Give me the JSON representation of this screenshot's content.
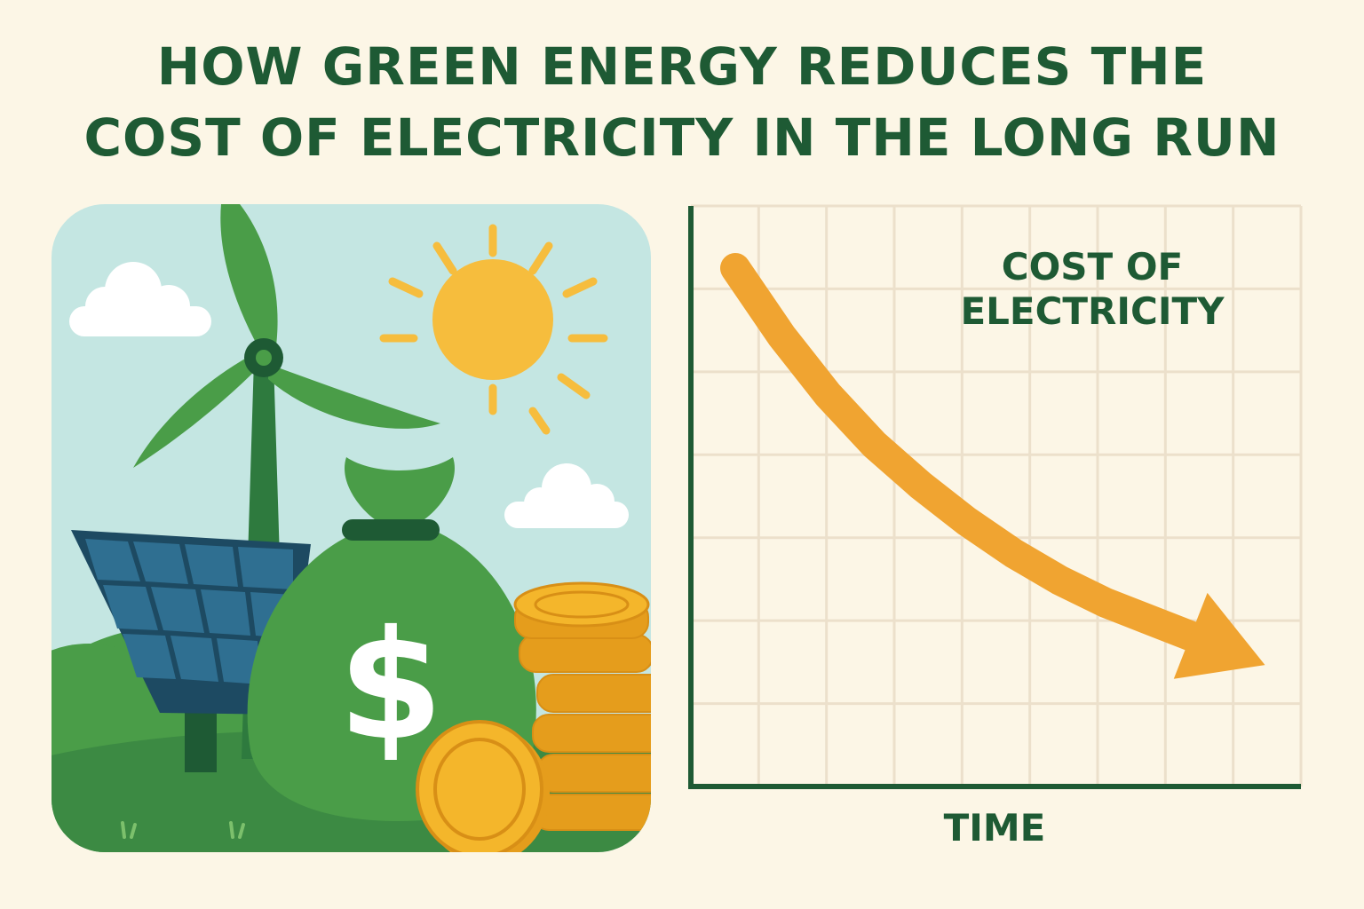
{
  "title": {
    "line1": "HOW GREEN ENERGY REDUCES THE",
    "line2": "COST OF ELECTRICITY IN THE LONG RUN"
  },
  "illustration": {
    "money_symbol": "$",
    "icons": [
      "wind-turbine-icon",
      "sun-icon",
      "cloud-icon",
      "solar-panel-icon",
      "money-bag-icon",
      "coin-stack-icon"
    ]
  },
  "chart_data": {
    "type": "line",
    "title": "",
    "ylabel_lines": [
      "COST OF",
      "ELECTRICITY"
    ],
    "xlabel": "TIME",
    "grid": true,
    "trend": "decreasing",
    "series": [
      {
        "x": [
          0,
          0.1,
          0.2,
          0.3,
          0.4,
          0.5,
          0.6,
          0.7,
          0.8,
          0.9,
          1.0
        ],
        "y": [
          1.0,
          0.85,
          0.72,
          0.61,
          0.52,
          0.44,
          0.37,
          0.31,
          0.26,
          0.22,
          0.18
        ]
      }
    ],
    "colors": {
      "line": "#f0a431",
      "axis": "#1e5a34",
      "grid": "#ece0cb"
    }
  },
  "colors": {
    "background": "#fcf6e6",
    "title": "#1e5a34",
    "green": "#4a9d48",
    "dark_green": "#1e5a34",
    "sky": "#c4e6e2",
    "sun": "#f6bd3d",
    "coin": "#f4b62b",
    "panel": "#25546c"
  }
}
